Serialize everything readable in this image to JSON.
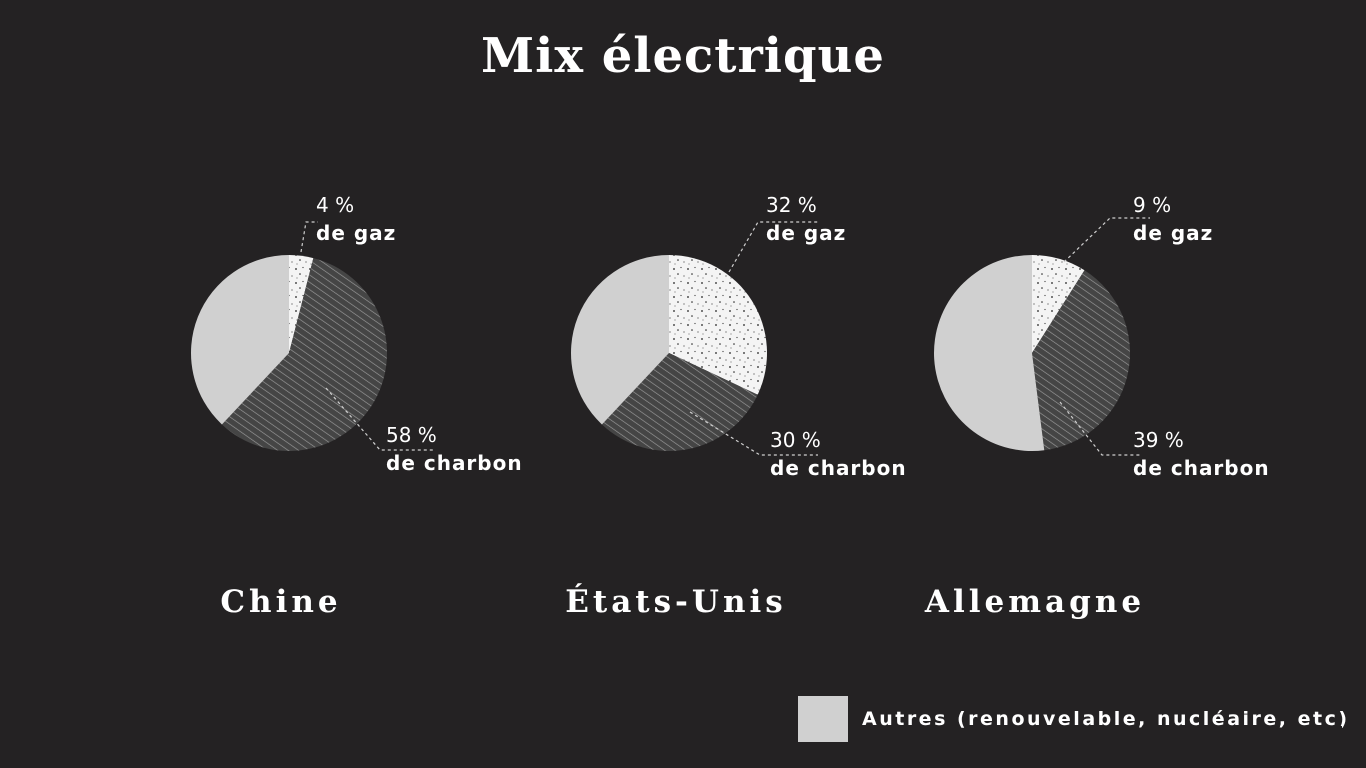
{
  "title": "Mix électrique",
  "chart_data": [
    {
      "type": "pie",
      "country": "Chine",
      "slices": [
        {
          "name": "gaz",
          "value": 4,
          "pct_label": "4 %",
          "label": "de gaz"
        },
        {
          "name": "charbon",
          "value": 58,
          "pct_label": "58 %",
          "label": "de charbon"
        },
        {
          "name": "autres",
          "value": 38
        }
      ]
    },
    {
      "type": "pie",
      "country": "États-Unis",
      "slices": [
        {
          "name": "gaz",
          "value": 32,
          "pct_label": "32 %",
          "label": "de gaz"
        },
        {
          "name": "charbon",
          "value": 30,
          "pct_label": "30 %",
          "label": "de charbon"
        },
        {
          "name": "autres",
          "value": 38
        }
      ]
    },
    {
      "type": "pie",
      "country": "Allemagne",
      "slices": [
        {
          "name": "gaz",
          "value": 9,
          "pct_label": "9 %",
          "label": "de gaz"
        },
        {
          "name": "charbon",
          "value": 39,
          "pct_label": "39 %",
          "label": "de charbon"
        },
        {
          "name": "autres",
          "value": 52
        }
      ]
    }
  ],
  "legend": {
    "label": "Autres (renouvelable, nucléaire, etc)"
  },
  "colors": {
    "background": "#242223",
    "autres": "#d0d0d0",
    "gaz": "#ffffff",
    "charbon": "#4a4a4a",
    "text": "#ffffff"
  }
}
